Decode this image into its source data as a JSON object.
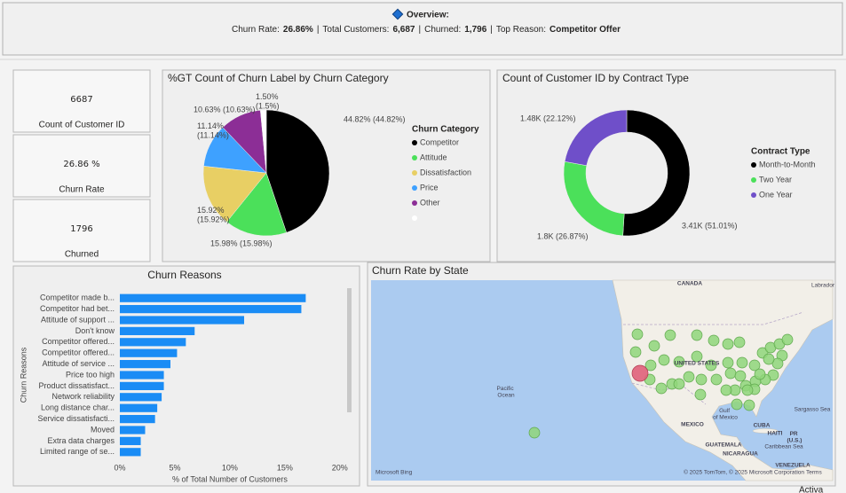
{
  "header": {
    "title": "Overview:",
    "separator": "|",
    "items": [
      {
        "label": "Churn Rate:",
        "value": "26.86%"
      },
      {
        "label": "Total Customers:",
        "value": "6,687"
      },
      {
        "label": "Churned:",
        "value": "1,796"
      },
      {
        "label": "Top Reason:",
        "value": "Competitor Offer"
      }
    ]
  },
  "cards": [
    {
      "value": "6687",
      "label": "Count of Customer ID"
    },
    {
      "value": "26.86 %",
      "label": "Churn Rate"
    },
    {
      "value": "1796",
      "label": "Churned"
    }
  ],
  "chart_data": [
    {
      "type": "pie",
      "title": "%GT Count of Churn Label by Churn Category",
      "legend_title": "Churn Category",
      "categories": [
        "Competitor",
        "Attitude",
        "Dissatisfaction",
        "Price",
        "Other",
        null
      ],
      "values": [
        44.82,
        15.98,
        15.92,
        11.14,
        10.63,
        1.5
      ],
      "value_labels": [
        "44.82% (44.82%)",
        "15.98% (15.98%)",
        "15.92% (15.92%)",
        "11.14% (11.14%)",
        "10.63% (10.63%)",
        "1.50% (1.5%)"
      ],
      "colors": [
        "#000000",
        "#4be05a",
        "#e8cf64",
        "#3ea1ff",
        "#8c2e96",
        "#ffffff"
      ]
    },
    {
      "type": "donut",
      "title": "Count of Customer ID by Contract Type",
      "legend_title": "Contract Type",
      "categories": [
        "Month-to-Month",
        "Two Year",
        "One Year"
      ],
      "values": [
        3410,
        1800,
        1480
      ],
      "value_labels": [
        "3.41K (51.01%)",
        "1.8K (26.87%)",
        "1.48K (22.12%)"
      ],
      "colors": [
        "#000000",
        "#4be05a",
        "#6f4fc9"
      ]
    },
    {
      "type": "bar",
      "orientation": "horizontal",
      "title": "Churn Reasons",
      "x_label": "% of Total Number of Customers",
      "y_label": "Churn Reasons",
      "categories": [
        "Competitor made b...",
        "Competitor had bet...",
        "Attitude of support ...",
        "Don't know",
        "Competitor offered...",
        "Competitor offered...",
        "Attitude of service ...",
        "Price too high",
        "Product dissatisfact...",
        "Network reliability",
        "Long distance char...",
        "Service dissatisfacti...",
        "Moved",
        "Extra data charges",
        "Limited range of se..."
      ],
      "values": [
        16.9,
        16.5,
        11.3,
        6.8,
        6.0,
        5.2,
        4.6,
        4.0,
        4.0,
        3.8,
        3.4,
        3.2,
        2.3,
        1.9,
        1.9
      ],
      "color": "#1a8cf5",
      "xlim": [
        0,
        20.5
      ],
      "xticks": [
        {
          "value": 0,
          "label": "0%"
        },
        {
          "value": 5,
          "label": "5%"
        },
        {
          "value": 10,
          "label": "10%"
        },
        {
          "value": 15,
          "label": "15%"
        },
        {
          "value": 20,
          "label": "20%"
        }
      ]
    }
  ],
  "map": {
    "title": "Churn Rate by State",
    "labels": [
      "CANADA",
      "UNITED STATES",
      "Pacific Ocean",
      "Gulf of Mexico",
      "MEXICO",
      "CUBA",
      "HAITI",
      "PR (U.S.)",
      "GUATEMALA",
      "NICARAGUA",
      "Caribbean Sea",
      "VENEZUELA",
      "Sargasso Sea",
      "Labrador"
    ],
    "attribution": "© 2025 TomTom, © 2025 Microsoft Corporation",
    "terms": "Terms",
    "provider": "Microsoft Bing"
  },
  "watermark": "Activa"
}
